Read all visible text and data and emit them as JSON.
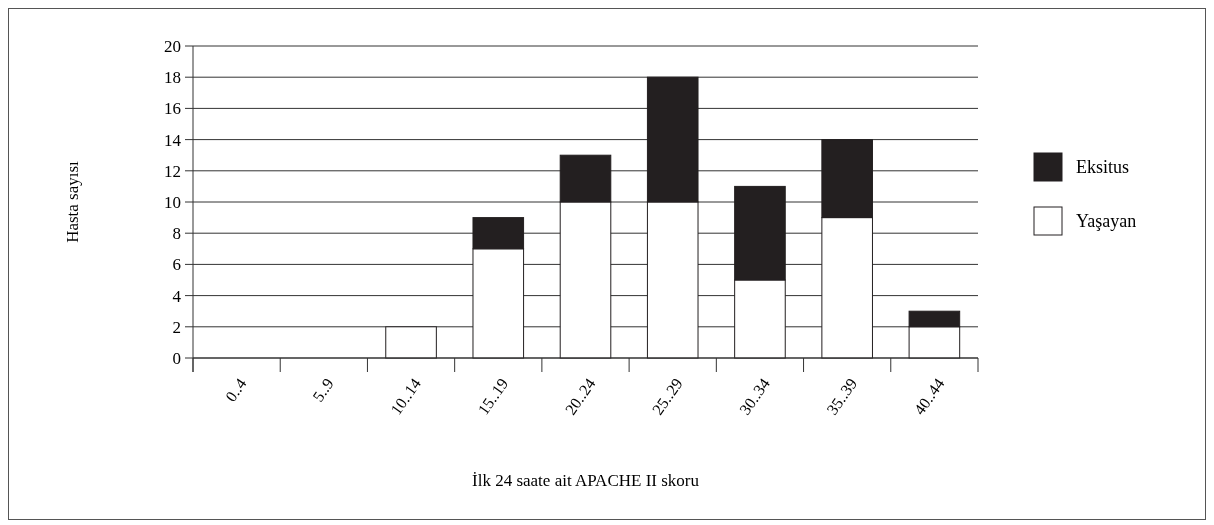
{
  "chart_data": {
    "type": "bar",
    "stacked": true,
    "xlabel": "İlk 24 saate ait APACHE II skoru",
    "ylabel": "Hasta sayısı",
    "categories": [
      "0..4",
      "5..9",
      "10..14",
      "15..19",
      "20..24",
      "25..29",
      "30..34",
      "35..39",
      "40..44"
    ],
    "series": [
      {
        "name": "Yaşayan",
        "color": "#ffffff",
        "values": [
          0,
          0,
          2,
          7,
          10,
          10,
          5,
          9,
          2
        ]
      },
      {
        "name": "Eksitus",
        "color": "#231f20",
        "values": [
          0,
          0,
          0,
          2,
          3,
          8,
          6,
          5,
          1
        ]
      }
    ],
    "ylim": [
      0,
      20
    ],
    "yticks": [
      0,
      2,
      4,
      6,
      8,
      10,
      12,
      14,
      16,
      18,
      20
    ],
    "grid": "y",
    "legend": "right"
  }
}
